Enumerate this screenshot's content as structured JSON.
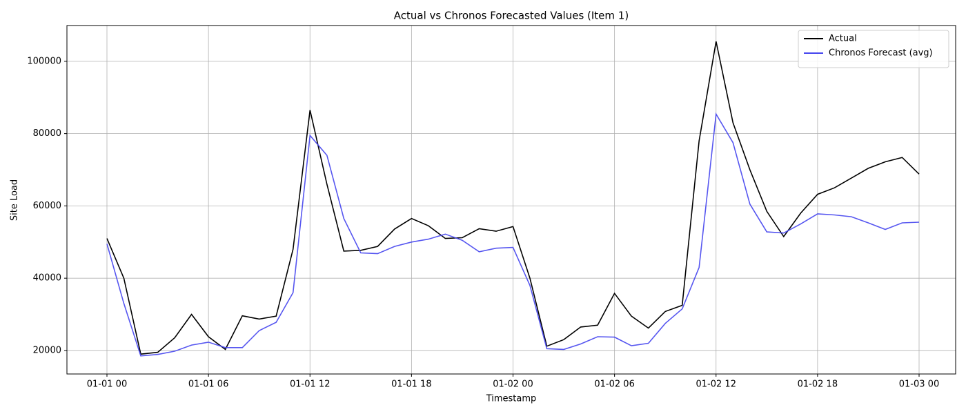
{
  "chart_data": {
    "type": "line",
    "title": "Actual vs Chronos Forecasted Values (Item 1)",
    "xlabel": "Timestamp",
    "ylabel": "Site Load",
    "x": [
      "01-01 00",
      "01-01 01",
      "01-01 02",
      "01-01 03",
      "01-01 04",
      "01-01 05",
      "01-01 06",
      "01-01 07",
      "01-01 08",
      "01-01 09",
      "01-01 10",
      "01-01 11",
      "01-01 12",
      "01-01 13",
      "01-01 14",
      "01-01 15",
      "01-01 16",
      "01-01 17",
      "01-01 18",
      "01-01 19",
      "01-01 20",
      "01-01 21",
      "01-01 22",
      "01-01 23",
      "01-02 00",
      "01-02 01",
      "01-02 02",
      "01-02 03",
      "01-02 04",
      "01-02 05",
      "01-02 06",
      "01-02 07",
      "01-02 08",
      "01-02 09",
      "01-02 10",
      "01-02 11",
      "01-02 12",
      "01-02 13",
      "01-02 14",
      "01-02 15",
      "01-02 16",
      "01-02 17",
      "01-02 18",
      "01-02 19",
      "01-02 20",
      "01-02 21",
      "01-02 22",
      "01-02 23",
      "01-03 00"
    ],
    "series": [
      {
        "name": "Actual",
        "color": "#000000",
        "values": [
          51000,
          40000,
          19000,
          19500,
          23500,
          30000,
          23800,
          20300,
          29600,
          28700,
          29500,
          48000,
          86500,
          66000,
          47500,
          47700,
          48800,
          53600,
          56500,
          54500,
          51000,
          51200,
          53700,
          53000,
          54300,
          40000,
          21200,
          23000,
          26500,
          27000,
          35800,
          29500,
          26200,
          30800,
          32500,
          78000,
          105500,
          83000,
          70000,
          58500,
          51500,
          58000,
          63200,
          65000,
          67700,
          70400,
          72200,
          73400,
          68800
        ]
      },
      {
        "name": "Chronos Forecast (avg)",
        "color": "#4444ee",
        "values": [
          49500,
          33000,
          18500,
          18900,
          19800,
          21500,
          22300,
          20800,
          20800,
          25500,
          27800,
          36000,
          79500,
          74000,
          56500,
          47000,
          46800,
          48800,
          50000,
          50800,
          52200,
          50500,
          47300,
          48300,
          48500,
          38000,
          20500,
          20300,
          21800,
          23800,
          23700,
          21300,
          22000,
          27500,
          31500,
          43000,
          85400,
          77500,
          60500,
          52800,
          52500,
          55000,
          57800,
          57500,
          57000,
          55300,
          53500,
          55300,
          55500
        ]
      }
    ],
    "xticks": [
      "01-01 00",
      "01-01 06",
      "01-01 12",
      "01-01 18",
      "01-02 00",
      "01-02 06",
      "01-02 12",
      "01-02 18",
      "01-03 00"
    ],
    "ylim": [
      13500,
      109900
    ],
    "yticks": [
      20000,
      40000,
      60000,
      80000,
      100000
    ],
    "grid": true,
    "legend": "upper right"
  }
}
